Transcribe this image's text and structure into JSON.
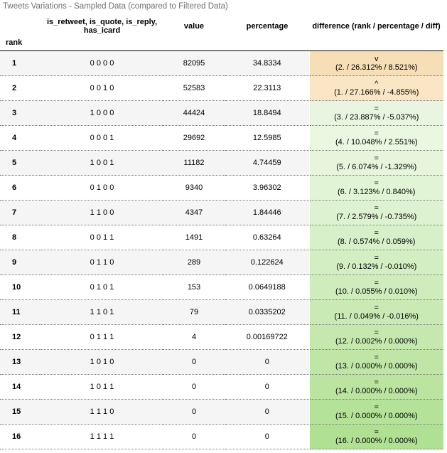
{
  "caption": "Tweets Variations - Sampled Data (compared to Filtered Data)",
  "columns": [
    "is_retweet, is_quote, is_reply, has_icard",
    "value",
    "percentage",
    "difference (rank / percentage / diff)"
  ],
  "index_name": "rank",
  "rows": [
    {
      "rank": "1",
      "combo": "0 0 0 0",
      "value": "82095",
      "percentage": "34.8334",
      "symbol": "v",
      "diff": "(2. / 26.312% / 8.521%)",
      "bg": "#f6deb6"
    },
    {
      "rank": "2",
      "combo": "0 0 1 0",
      "value": "52583",
      "percentage": "22.3113",
      "symbol": "^",
      "diff": "(1. / 27.166% / -4.855%)",
      "bg": "#fae6c4"
    },
    {
      "rank": "3",
      "combo": "1 0 0 0",
      "value": "44424",
      "percentage": "18.8494",
      "symbol": "=",
      "diff": "(3. / 23.887% / -5.037%)",
      "bg": "#e9f5e1"
    },
    {
      "rank": "4",
      "combo": "0 0 0 1",
      "value": "29692",
      "percentage": "12.5985",
      "symbol": "=",
      "diff": "(4. / 10.048% / 2.551%)",
      "bg": "#eaf7e1"
    },
    {
      "rank": "5",
      "combo": "1 0 0 1",
      "value": "11182",
      "percentage": "4.74459",
      "symbol": "=",
      "diff": "(5. / 6.074% / -1.329%)",
      "bg": "#e6f5dc"
    },
    {
      "rank": "6",
      "combo": "0 1 0 0",
      "value": "9340",
      "percentage": "3.96302",
      "symbol": "=",
      "diff": "(6. / 3.123% / 0.840%)",
      "bg": "#e2f4d6"
    },
    {
      "rank": "7",
      "combo": "1 1 0 0",
      "value": "4347",
      "percentage": "1.84446",
      "symbol": "=",
      "diff": "(7. / 2.579% / -0.735%)",
      "bg": "#ddf2d0"
    },
    {
      "rank": "8",
      "combo": "0 0 1 1",
      "value": "1491",
      "percentage": "0.63264",
      "symbol": "=",
      "diff": "(8. / 0.574% / 0.059%)",
      "bg": "#d8f0ca"
    },
    {
      "rank": "9",
      "combo": "0 1 1 0",
      "value": "289",
      "percentage": "0.122624",
      "symbol": "=",
      "diff": "(9. / 0.132% / -0.010%)",
      "bg": "#d3eec3"
    },
    {
      "rank": "10",
      "combo": "0 1 0 1",
      "value": "153",
      "percentage": "0.0649188",
      "symbol": "=",
      "diff": "(10. / 0.055% / 0.010%)",
      "bg": "#ceecbc"
    },
    {
      "rank": "11",
      "combo": "1 1 0 1",
      "value": "79",
      "percentage": "0.0335202",
      "symbol": "=",
      "diff": "(11. / 0.049% / -0.016%)",
      "bg": "#c9eab5"
    },
    {
      "rank": "12",
      "combo": "0 1 1 1",
      "value": "4",
      "percentage": "0.00169722",
      "symbol": "=",
      "diff": "(12. / 0.002% / 0.000%)",
      "bg": "#c4e8ae"
    },
    {
      "rank": "13",
      "combo": "1 0 1 0",
      "value": "0",
      "percentage": "0",
      "symbol": "=",
      "diff": "(13. / 0.000% / 0.000%)",
      "bg": "#bfe6a7"
    },
    {
      "rank": "14",
      "combo": "1 0 1 1",
      "value": "0",
      "percentage": "0",
      "symbol": "=",
      "diff": "(14. / 0.000% / 0.000%)",
      "bg": "#bae4a0"
    },
    {
      "rank": "15",
      "combo": "1 1 1 0",
      "value": "0",
      "percentage": "0",
      "symbol": "=",
      "diff": "(15. / 0.000% / 0.000%)",
      "bg": "#b5e299"
    },
    {
      "rank": "16",
      "combo": "1 1 1 1",
      "value": "0",
      "percentage": "0",
      "symbol": "=",
      "diff": "(16. / 0.000% / 0.000%)",
      "bg": "#b0e092"
    }
  ]
}
